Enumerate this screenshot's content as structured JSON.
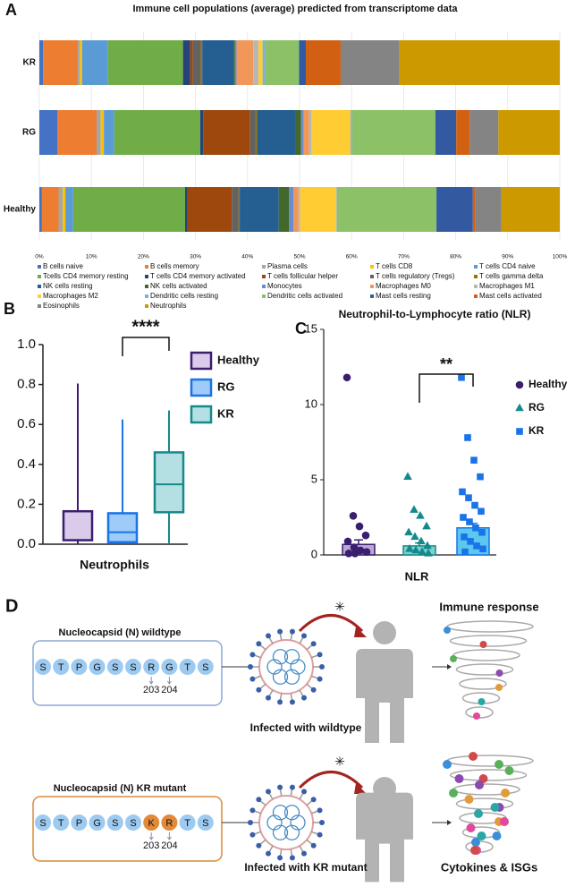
{
  "chart_data": [
    {
      "type": "stacked_bar_horizontal",
      "panel_label": "A",
      "title": "Immune cell populations (average) predicted from transcriptome data",
      "categories": [
        "KR",
        "RG",
        "Healthy"
      ],
      "xlim": [
        0,
        100
      ],
      "xticks": [
        {
          "value": 0,
          "label": "0%"
        },
        {
          "value": 10,
          "label": "10%"
        },
        {
          "value": 20,
          "label": "20%"
        },
        {
          "value": 30,
          "label": "30%"
        },
        {
          "value": 40,
          "label": "40%"
        },
        {
          "value": 50,
          "label": "50%"
        },
        {
          "value": 60,
          "label": "60%"
        },
        {
          "value": 70,
          "label": "70%"
        },
        {
          "value": 80,
          "label": "80%"
        },
        {
          "value": 90,
          "label": "90%"
        },
        {
          "value": 100,
          "label": "100%"
        }
      ],
      "series": [
        {
          "name": "B cells naive",
          "color": "#4472c4",
          "values": [
            0.7,
            3.5,
            0.5
          ]
        },
        {
          "name": "B cells memory",
          "color": "#ed7d31",
          "values": [
            6.7,
            7.5,
            3.2
          ]
        },
        {
          "name": "Plasma cells",
          "color": "#a5a5a5",
          "values": [
            0.4,
            0.8,
            0.8
          ]
        },
        {
          "name": "T cells CD8",
          "color": "#ffc000",
          "values": [
            0.4,
            0.6,
            0.5
          ]
        },
        {
          "name": "T cells CD4 naive",
          "color": "#5b9bd5",
          "values": [
            5.0,
            2.0,
            1.5
          ]
        },
        {
          "name": "Tcells CD4 memory resting",
          "color": "#70ad47",
          "values": [
            14.4,
            16.5,
            21.5
          ]
        },
        {
          "name": "T cells CD4 memory activated",
          "color": "#264478",
          "values": [
            1.4,
            0.6,
            0.5
          ]
        },
        {
          "name": "T cells follicular helper",
          "color": "#9e480e",
          "values": [
            0.5,
            9.0,
            8.5
          ]
        },
        {
          "name": "T cells regulatory (Tregs)",
          "color": "#636363",
          "values": [
            1.5,
            1.0,
            1.3
          ]
        },
        {
          "name": "T cells gamma delta",
          "color": "#997300",
          "values": [
            0.3,
            0.3,
            0.2
          ]
        },
        {
          "name": "NK cells resting",
          "color": "#255e91",
          "values": [
            6.0,
            7.5,
            7.5
          ]
        },
        {
          "name": "NK cells activated",
          "color": "#43682b",
          "values": [
            0.3,
            1.0,
            2.0
          ]
        },
        {
          "name": "Monocytes",
          "color": "#698ed0",
          "values": [
            0.3,
            0.5,
            0.8
          ]
        },
        {
          "name": "Macrophages M0",
          "color": "#f1975a",
          "values": [
            3.2,
            1.0,
            1.0
          ]
        },
        {
          "name": "Macrophages M1",
          "color": "#b7b7b7",
          "values": [
            1.0,
            0.5,
            0.3
          ]
        },
        {
          "name": "Macrophages M2",
          "color": "#ffcd33",
          "values": [
            0.8,
            7.5,
            7.0
          ]
        },
        {
          "name": "Dendritic cells resting",
          "color": "#7cafdd",
          "values": [
            0.5,
            0.3,
            0.2
          ]
        },
        {
          "name": "Dendritic cells activated",
          "color": "#8cc168",
          "values": [
            6.5,
            16.0,
            19.0
          ]
        },
        {
          "name": "Mast cells resting",
          "color": "#335aa1",
          "values": [
            1.3,
            4.0,
            7.0
          ]
        },
        {
          "name": "Mast cells activated",
          "color": "#d26012",
          "values": [
            6.7,
            2.6,
            0.5
          ]
        },
        {
          "name": "Eosinophils",
          "color": "#848484",
          "values": [
            11.3,
            5.5,
            5.0
          ]
        },
        {
          "name": "Neutrophils",
          "color": "#cc9a00",
          "values": [
            30.8,
            11.8,
            11.2
          ]
        }
      ]
    },
    {
      "type": "box",
      "panel_label": "B",
      "xlabel": "Neutrophils",
      "categories": [
        "Healthy",
        "RG",
        "KR"
      ],
      "colors": [
        "#3b1e6e",
        "#1a73e8",
        "#17898a"
      ],
      "fills": [
        "#d9cbe9",
        "#9ecbf7",
        "#b5e0e3"
      ],
      "min": [
        0,
        0,
        0.005
      ],
      "q1": [
        0.02,
        0.01,
        0.16
      ],
      "median": [
        0.02,
        0.06,
        0.3
      ],
      "q3": [
        0.165,
        0.155,
        0.46
      ],
      "max": [
        0.805,
        0.625,
        0.67
      ],
      "ylim": [
        0,
        1
      ],
      "yticks": [
        {
          "value": 0,
          "label": "0.0"
        },
        0.2,
        0.4,
        0.6,
        0.8,
        {
          "value": 1,
          "label": "1.0"
        }
      ],
      "significance": "****"
    },
    {
      "type": "bar_scatter",
      "panel_label": "C",
      "title": "Neutrophil-to-Lymphocyte ratio (NLR)",
      "xlabel": "NLR",
      "ylim": [
        0,
        15
      ],
      "yticks": [
        0,
        5,
        10,
        15
      ],
      "significance": "**",
      "series": [
        {
          "name": "Healthy",
          "color": "#3b1e6e",
          "fill": "#b9a7d6",
          "marker": "circle",
          "mean": 0.7,
          "sem": 0.3,
          "points": [
            11.8,
            2.6,
            1.9,
            1.3,
            0.9,
            0.5,
            0.3,
            0.2,
            0.1,
            0.1
          ]
        },
        {
          "name": "RG",
          "color": "#138a8a",
          "fill": "#7fd0cf",
          "marker": "triangle",
          "mean": 0.6,
          "sem": 0.2,
          "points": [
            5.2,
            3.0,
            2.6,
            1.9,
            1.5,
            1.2,
            0.9,
            0.6,
            0.4,
            0.3,
            0.2,
            0.1
          ]
        },
        {
          "name": "KR",
          "color": "#1a73e8",
          "fill": "#5cc8f0",
          "marker": "square",
          "mean": 1.8,
          "sem": 0.3,
          "points": [
            11.8,
            7.8,
            6.3,
            5.2,
            4.2,
            3.8,
            3.3,
            2.9,
            2.5,
            2.2,
            1.8,
            1.5,
            1.2,
            0.9,
            0.6,
            0.4,
            0.2
          ]
        }
      ]
    }
  ],
  "diagram": {
    "panel_label": "D",
    "wildtype": {
      "title": "Nucleocapsid (N) wildtype",
      "residues": [
        "S",
        "T",
        "P",
        "G",
        "S",
        "S",
        "R",
        "G",
        "T",
        "S"
      ],
      "positions": [
        "203",
        "204"
      ],
      "caption": "Infected with wildtype",
      "outcome": "Immune response"
    },
    "mutant": {
      "title": "Nucleocapsid (N) KR mutant",
      "residues": [
        "S",
        "T",
        "P",
        "G",
        "S",
        "S",
        "K",
        "R",
        "T",
        "S"
      ],
      "positions": [
        "203",
        "204"
      ],
      "caption": "Infected with KR mutant",
      "outcome": "Cytokines & ISGs"
    }
  }
}
